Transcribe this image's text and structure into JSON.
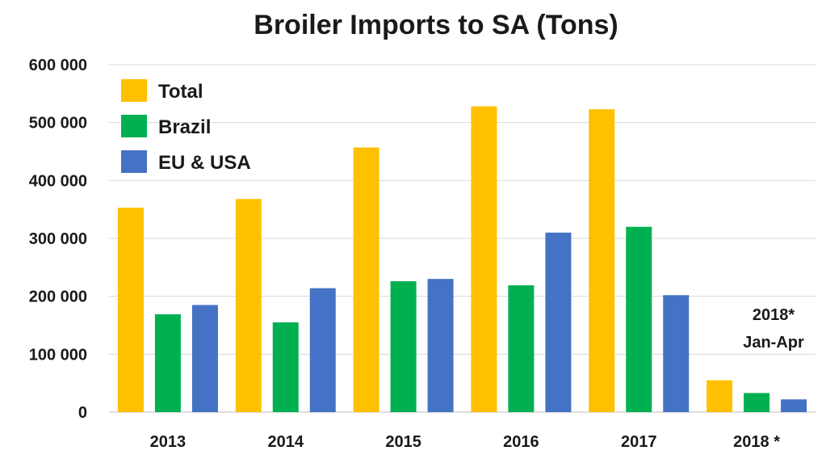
{
  "chart_data": {
    "type": "bar",
    "title": "Broiler Imports  to SA (Tons)",
    "xlabel": "",
    "ylabel": "",
    "categories": [
      "2013",
      "2014",
      "2015",
      "2016",
      "2017",
      "2018 *"
    ],
    "series": [
      {
        "name": "Total",
        "color": "#FFC000",
        "values": [
          353000,
          368000,
          457000,
          528000,
          523000,
          55000
        ]
      },
      {
        "name": "Brazil",
        "color": "#00B050",
        "values": [
          169000,
          155000,
          226000,
          219000,
          320000,
          33000
        ]
      },
      {
        "name": "EU & USA",
        "color": "#4472C4",
        "values": [
          185000,
          214000,
          230000,
          310000,
          202000,
          22000
        ]
      }
    ],
    "ylim": [
      0,
      600000
    ],
    "yticks": [
      0,
      100000,
      200000,
      300000,
      400000,
      500000,
      600000
    ],
    "ytick_labels": [
      "0",
      "100 000",
      "200 000",
      "300 000",
      "400 000",
      "500 000",
      "600 000"
    ],
    "grid": true,
    "legend_position": "top-left",
    "annotations": [
      "2018*",
      "Jan-Apr"
    ]
  }
}
